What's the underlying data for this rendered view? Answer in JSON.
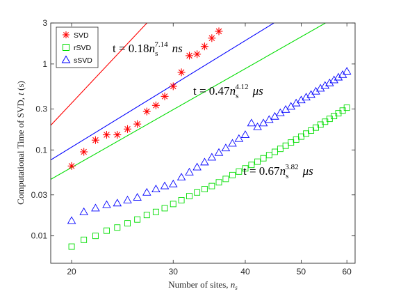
{
  "chart_data": {
    "type": "scatter",
    "xlabel": "Number of sites, n_s",
    "ylabel": "Computational Time of SVD, t (s)",
    "xscale": "log",
    "yscale": "log",
    "xlim": [
      18.4,
      62
    ],
    "ylim": [
      0.0048,
      3
    ],
    "xticks": [
      20,
      30,
      40,
      50,
      60
    ],
    "yticks": [
      0.01,
      0.03,
      0.1,
      0.3,
      1,
      3
    ],
    "ytick_labels": [
      "0.01",
      "0.03",
      "0.1",
      "0.3",
      "1",
      "3"
    ],
    "grid": false,
    "legend_position": "top-left",
    "series": [
      {
        "name": "SVD",
        "marker": "star",
        "color": "#ff0000",
        "x": [
          20,
          21,
          22,
          23,
          24,
          25,
          26,
          27,
          28,
          29,
          30,
          31,
          32,
          33,
          34,
          35,
          36
        ],
        "y": [
          0.065,
          0.095,
          0.13,
          0.15,
          0.15,
          0.175,
          0.2,
          0.28,
          0.33,
          0.42,
          0.55,
          0.8,
          1.25,
          1.3,
          1.6,
          2.0,
          2.4
        ],
        "fit": {
          "label": "t = 0.18 n_s^7.14 ns",
          "coef": 0.18,
          "exponent": 7.14,
          "unit_scale": 1e-09,
          "x_range": [
            18.4,
            38.2
          ]
        }
      },
      {
        "name": "rSVD",
        "marker": "square",
        "color": "#00dd00",
        "x": [
          20,
          21,
          22,
          23,
          24,
          25,
          26,
          27,
          28,
          29,
          30,
          31,
          32,
          33,
          34,
          35,
          36,
          37,
          38,
          39,
          40,
          41,
          42,
          43,
          44,
          45,
          46,
          47,
          48,
          49,
          50,
          51,
          52,
          53,
          54,
          55,
          56,
          57,
          58,
          59,
          60
        ],
        "y": [
          0.0075,
          0.009,
          0.01,
          0.0115,
          0.0125,
          0.014,
          0.0155,
          0.0175,
          0.019,
          0.021,
          0.0235,
          0.026,
          0.029,
          0.032,
          0.035,
          0.038,
          0.042,
          0.046,
          0.051,
          0.056,
          0.061,
          0.067,
          0.073,
          0.08,
          0.087,
          0.095,
          0.103,
          0.112,
          0.122,
          0.132,
          0.143,
          0.155,
          0.168,
          0.182,
          0.197,
          0.213,
          0.23,
          0.248,
          0.267,
          0.287,
          0.31
        ],
        "fit": {
          "label": "t = 0.67 n_s^3.82 μs",
          "coef": 0.67,
          "exponent": 3.82,
          "unit_scale": 1e-06,
          "x_range": [
            18.4,
            62
          ]
        }
      },
      {
        "name": "sSVD",
        "marker": "triangle",
        "color": "#0000ff",
        "x": [
          20,
          21,
          22,
          23,
          24,
          25,
          26,
          27,
          28,
          29,
          30,
          31,
          32,
          33,
          34,
          35,
          36,
          37,
          38,
          39,
          40,
          41,
          42,
          43,
          44,
          45,
          46,
          47,
          48,
          49,
          50,
          51,
          52,
          53,
          54,
          55,
          56,
          57,
          58,
          59,
          60
        ],
        "y": [
          0.015,
          0.019,
          0.021,
          0.023,
          0.024,
          0.026,
          0.028,
          0.032,
          0.035,
          0.038,
          0.04,
          0.048,
          0.055,
          0.063,
          0.072,
          0.082,
          0.093,
          0.105,
          0.119,
          0.135,
          0.15,
          0.205,
          0.185,
          0.205,
          0.225,
          0.245,
          0.27,
          0.295,
          0.32,
          0.35,
          0.38,
          0.41,
          0.44,
          0.48,
          0.52,
          0.56,
          0.6,
          0.65,
          0.7,
          0.75,
          0.82
        ],
        "fit": {
          "label": "t = 0.47 n_s^4.12 μs",
          "coef": 0.47,
          "exponent": 4.12,
          "unit_scale": 1e-06,
          "x_range": [
            18.4,
            62
          ]
        }
      }
    ],
    "annotations": [
      {
        "series": "SVD",
        "prefix": "t = 0.18",
        "base": "n",
        "sub": "s",
        "exp": "7.14",
        "unit": "ns"
      },
      {
        "series": "sSVD",
        "prefix": "t = 0.47",
        "base": "n",
        "sub": "s",
        "exp": "4.12",
        "unit": "μs"
      },
      {
        "series": "rSVD",
        "prefix": "t = 0.67",
        "base": "n",
        "sub": "s",
        "exp": "3.82",
        "unit": "μs"
      }
    ]
  }
}
